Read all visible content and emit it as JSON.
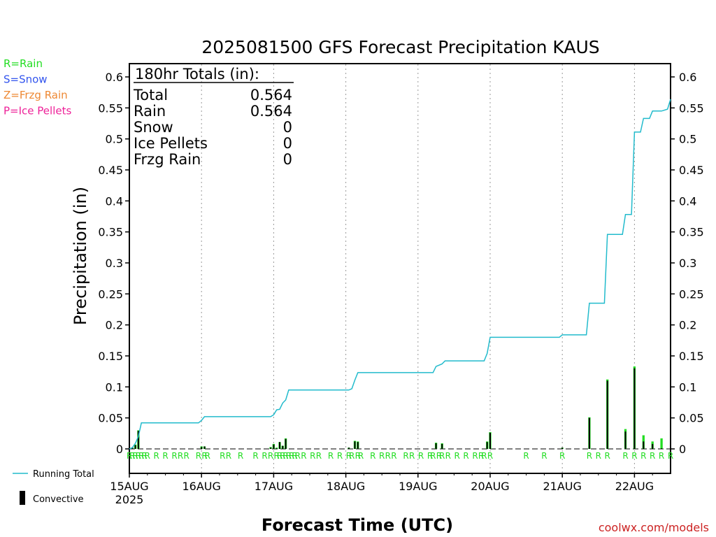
{
  "chart_data": {
    "type": "bar",
    "title": "2025081500 GFS Forecast Precipitation KAUS",
    "xlabel": "Forecast Time (UTC)",
    "ylabel": "Precipitation (in)",
    "ylim": [
      0,
      0.62
    ],
    "yticks": [
      0,
      0.05,
      0.1,
      0.15,
      0.2,
      0.25,
      0.3,
      0.35,
      0.4,
      0.45,
      0.5,
      0.55,
      0.6
    ],
    "ytick_labels": [
      "0",
      "0.05",
      "0.1",
      "0.15",
      "0.2",
      "0.25",
      "0.3",
      "0.35",
      "0.4",
      "0.45",
      "0.5",
      "0.55",
      "0.6"
    ],
    "xlim_hours": [
      0,
      180
    ],
    "xticks": [
      {
        "hour": 0,
        "label": "15AUG",
        "sublabel": "2025"
      },
      {
        "hour": 24,
        "label": "16AUG"
      },
      {
        "hour": 48,
        "label": "17AUG"
      },
      {
        "hour": 72,
        "label": "18AUG"
      },
      {
        "hour": 96,
        "label": "19AUG"
      },
      {
        "hour": 120,
        "label": "20AUG"
      },
      {
        "hour": 144,
        "label": "21AUG"
      },
      {
        "hour": 168,
        "label": "22AUG"
      }
    ],
    "grid": "vertical dotted",
    "totals_box": {
      "header": "180hr Totals (in):",
      "rows": [
        {
          "label": "Total",
          "value": "0.564"
        },
        {
          "label": "Rain",
          "value": "0.564"
        },
        {
          "label": "Snow",
          "value": "0"
        },
        {
          "label": "Ice Pellets",
          "value": "0"
        },
        {
          "label": "Frzg Rain",
          "value": "0"
        }
      ]
    },
    "ptype_legend": [
      {
        "text": "R=Rain",
        "color": "#22dd22"
      },
      {
        "text": "S=Snow",
        "color": "#3355ee"
      },
      {
        "text": "Z=Frzg Rain",
        "color": "#ee8833"
      },
      {
        "text": "P=Ice Pellets",
        "color": "#ee2299"
      }
    ],
    "series_legend": [
      {
        "name": "Running Total",
        "kind": "line",
        "color": "#22bbcc"
      },
      {
        "name": "Convective",
        "kind": "bar",
        "color": "#000000"
      }
    ],
    "colors": {
      "precip_bar": "#22dd22",
      "convective_bar": "#000000",
      "running_total": "#22bbcc",
      "ptype_label": "#22dd22"
    },
    "precip_bars": [
      {
        "hour": 1,
        "total": 0.002,
        "convective": 0.002
      },
      {
        "hour": 2,
        "total": 0.007,
        "convective": 0.006
      },
      {
        "hour": 3,
        "total": 0.03,
        "convective": 0.029
      },
      {
        "hour": 24,
        "total": 0.004,
        "convective": 0.003
      },
      {
        "hour": 25,
        "total": 0.004,
        "convective": 0.004
      },
      {
        "hour": 47,
        "total": 0.003,
        "convective": 0.002
      },
      {
        "hour": 48,
        "total": 0.008,
        "convective": 0.007
      },
      {
        "hour": 49,
        "total": 0.002,
        "convective": 0.001
      },
      {
        "hour": 50,
        "total": 0.011,
        "convective": 0.011
      },
      {
        "hour": 51,
        "total": 0.005,
        "convective": 0.005
      },
      {
        "hour": 52,
        "total": 0.017,
        "convective": 0.016
      },
      {
        "hour": 73,
        "total": 0.002,
        "convective": 0.002
      },
      {
        "hour": 75,
        "total": 0.013,
        "convective": 0.012
      },
      {
        "hour": 76,
        "total": 0.012,
        "convective": 0.011
      },
      {
        "hour": 102,
        "total": 0.01,
        "convective": 0.009
      },
      {
        "hour": 104,
        "total": 0.009,
        "convective": 0.008
      },
      {
        "hour": 119,
        "total": 0.012,
        "convective": 0.011
      },
      {
        "hour": 120,
        "total": 0.027,
        "convective": 0.026
      },
      {
        "hour": 144,
        "total": 0.002,
        "convective": 0.002
      },
      {
        "hour": 153,
        "total": 0.051,
        "convective": 0.05
      },
      {
        "hour": 159,
        "total": 0.112,
        "convective": 0.11
      },
      {
        "hour": 165,
        "total": 0.032,
        "convective": 0.028
      },
      {
        "hour": 168,
        "total": 0.133,
        "convective": 0.13
      },
      {
        "hour": 171,
        "total": 0.022,
        "convective": 0.012
      },
      {
        "hour": 174,
        "total": 0.012,
        "convective": 0.008
      },
      {
        "hour": 177,
        "total": 0.017,
        "convective": 0.001
      }
    ],
    "running_total": [
      [
        0,
        0
      ],
      [
        1,
        0.002
      ],
      [
        2,
        0.009
      ],
      [
        3,
        0.02
      ],
      [
        4,
        0.042
      ],
      [
        23,
        0.042
      ],
      [
        24,
        0.046
      ],
      [
        25,
        0.052
      ],
      [
        47,
        0.052
      ],
      [
        48,
        0.055
      ],
      [
        49,
        0.063
      ],
      [
        50,
        0.064
      ],
      [
        51,
        0.074
      ],
      [
        52,
        0.079
      ],
      [
        53,
        0.095
      ],
      [
        73,
        0.095
      ],
      [
        74,
        0.097
      ],
      [
        75,
        0.111
      ],
      [
        76,
        0.123
      ],
      [
        101,
        0.123
      ],
      [
        102,
        0.133
      ],
      [
        104,
        0.137
      ],
      [
        105,
        0.142
      ],
      [
        118,
        0.142
      ],
      [
        119,
        0.154
      ],
      [
        120,
        0.18
      ],
      [
        143,
        0.18
      ],
      [
        144,
        0.184
      ],
      [
        152,
        0.184
      ],
      [
        153,
        0.235
      ],
      [
        158,
        0.235
      ],
      [
        159,
        0.346
      ],
      [
        164,
        0.346
      ],
      [
        165,
        0.378
      ],
      [
        167,
        0.378
      ],
      [
        168,
        0.511
      ],
      [
        170,
        0.511
      ],
      [
        171,
        0.533
      ],
      [
        173,
        0.533
      ],
      [
        174,
        0.545
      ],
      [
        176,
        0.545
      ],
      [
        177,
        0.545
      ],
      [
        179,
        0.548
      ],
      [
        180,
        0.564
      ]
    ],
    "ptype_labels": [
      {
        "hour": 0,
        "text": "R"
      },
      {
        "hour": 1,
        "text": "R"
      },
      {
        "hour": 2,
        "text": "R"
      },
      {
        "hour": 3,
        "text": "R"
      },
      {
        "hour": 4,
        "text": "R"
      },
      {
        "hour": 5,
        "text": "R"
      },
      {
        "hour": 6,
        "text": "R"
      },
      {
        "hour": 9,
        "text": "R"
      },
      {
        "hour": 12,
        "text": "R"
      },
      {
        "hour": 15,
        "text": "R"
      },
      {
        "hour": 17,
        "text": "R"
      },
      {
        "hour": 19,
        "text": "R"
      },
      {
        "hour": 23,
        "text": "R"
      },
      {
        "hour": 25,
        "text": "R"
      },
      {
        "hour": 26,
        "text": "R"
      },
      {
        "hour": 31,
        "text": "R"
      },
      {
        "hour": 33,
        "text": "R"
      },
      {
        "hour": 37,
        "text": "R"
      },
      {
        "hour": 42,
        "text": "R"
      },
      {
        "hour": 45,
        "text": "R"
      },
      {
        "hour": 47,
        "text": "R"
      },
      {
        "hour": 49,
        "text": "R"
      },
      {
        "hour": 50,
        "text": "R"
      },
      {
        "hour": 51,
        "text": "R"
      },
      {
        "hour": 52,
        "text": "R"
      },
      {
        "hour": 53,
        "text": "R"
      },
      {
        "hour": 54,
        "text": "R"
      },
      {
        "hour": 55,
        "text": "R"
      },
      {
        "hour": 56,
        "text": "R"
      },
      {
        "hour": 58,
        "text": "R"
      },
      {
        "hour": 61,
        "text": "R"
      },
      {
        "hour": 63,
        "text": "R"
      },
      {
        "hour": 67,
        "text": "R"
      },
      {
        "hour": 70,
        "text": "R"
      },
      {
        "hour": 73,
        "text": "R"
      },
      {
        "hour": 74,
        "text": "R"
      },
      {
        "hour": 76,
        "text": "R"
      },
      {
        "hour": 77,
        "text": "R"
      },
      {
        "hour": 81,
        "text": "R"
      },
      {
        "hour": 84,
        "text": "R"
      },
      {
        "hour": 86,
        "text": "R"
      },
      {
        "hour": 88,
        "text": "R"
      },
      {
        "hour": 92,
        "text": "R"
      },
      {
        "hour": 94,
        "text": "R"
      },
      {
        "hour": 97,
        "text": "R"
      },
      {
        "hour": 100,
        "text": "R"
      },
      {
        "hour": 101,
        "text": "R"
      },
      {
        "hour": 103,
        "text": "R"
      },
      {
        "hour": 104,
        "text": "R"
      },
      {
        "hour": 106,
        "text": "R"
      },
      {
        "hour": 109,
        "text": "R"
      },
      {
        "hour": 112,
        "text": "R"
      },
      {
        "hour": 115,
        "text": "R"
      },
      {
        "hour": 117,
        "text": "R"
      },
      {
        "hour": 118,
        "text": "R"
      },
      {
        "hour": 120,
        "text": "R"
      },
      {
        "hour": 132,
        "text": "R"
      },
      {
        "hour": 138,
        "text": "R"
      },
      {
        "hour": 144,
        "text": "R"
      },
      {
        "hour": 153,
        "text": "R"
      },
      {
        "hour": 156,
        "text": "R"
      },
      {
        "hour": 159,
        "text": "R"
      },
      {
        "hour": 165,
        "text": "R"
      },
      {
        "hour": 168,
        "text": "R"
      },
      {
        "hour": 171,
        "text": "R"
      },
      {
        "hour": 174,
        "text": "R"
      },
      {
        "hour": 177,
        "text": "R"
      },
      {
        "hour": 180,
        "text": "R"
      }
    ]
  },
  "footer": {
    "credit": "coolwx.com/models"
  }
}
